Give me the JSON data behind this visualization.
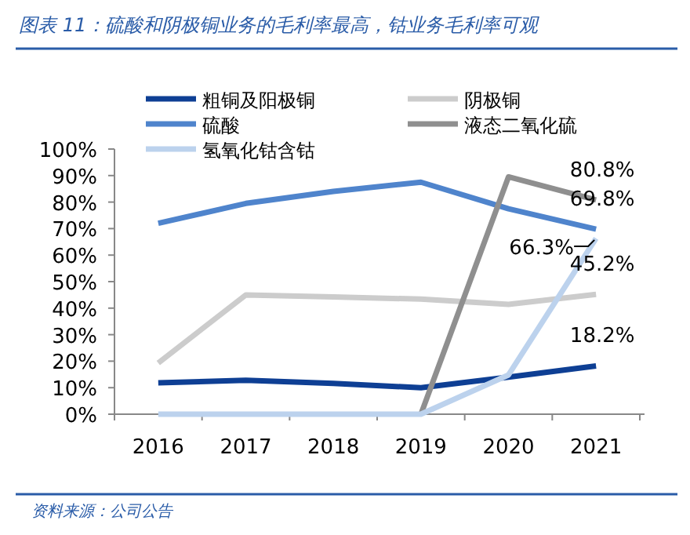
{
  "chart_data": {
    "type": "line",
    "title": "图表 11：硫酸和阴极铜业务的毛利率最高，钴业务毛利率可观",
    "categories": [
      "2016",
      "2017",
      "2018",
      "2019",
      "2020",
      "2021"
    ],
    "series": [
      {
        "name": "粗铜及阳极铜",
        "color": "#0e3f94",
        "values": [
          11.8,
          12.8,
          11.6,
          10,
          14,
          18.2
        ],
        "value_labels": [
          null,
          null,
          null,
          null,
          null,
          "18.2%"
        ]
      },
      {
        "name": "阴极铜",
        "color": "#cccccc",
        "values": [
          19.3,
          45,
          44.2,
          43.4,
          41.4,
          45.2
        ],
        "value_labels": [
          null,
          null,
          null,
          null,
          null,
          "45.2%"
        ]
      },
      {
        "name": "硫酸",
        "color": "#4f84cc",
        "values": [
          72,
          79.5,
          84,
          87.5,
          77.5,
          69.8
        ],
        "value_labels": [
          null,
          null,
          null,
          null,
          null,
          "69.8%"
        ]
      },
      {
        "name": "液态二氧化硫",
        "color": "#8f8f8f",
        "values": [
          null,
          null,
          null,
          0,
          89.5,
          80.8
        ],
        "value_labels": [
          null,
          null,
          null,
          null,
          null,
          "80.8%"
        ]
      },
      {
        "name": "氢氧化钴含钴",
        "color": "#bcd2ed",
        "values": [
          0,
          0,
          0,
          0,
          14.8,
          66.3
        ],
        "value_labels": [
          null,
          null,
          null,
          null,
          null,
          "66.3%"
        ]
      }
    ],
    "ylim": [
      0,
      100
    ],
    "yticks": [
      {
        "value": 0,
        "label": "0%"
      },
      {
        "value": 10,
        "label": "10%"
      },
      {
        "value": 20,
        "label": "20%"
      },
      {
        "value": 30,
        "label": "30%"
      },
      {
        "value": 40,
        "label": "40%"
      },
      {
        "value": 50,
        "label": "50%"
      },
      {
        "value": 60,
        "label": "60%"
      },
      {
        "value": 70,
        "label": "70%"
      },
      {
        "value": 80,
        "label": "80%"
      },
      {
        "value": 90,
        "label": "90%"
      },
      {
        "value": 100,
        "label": "100%"
      }
    ],
    "legend": "top",
    "grid": false,
    "annotations": [
      "资料来源：公司公告"
    ]
  }
}
